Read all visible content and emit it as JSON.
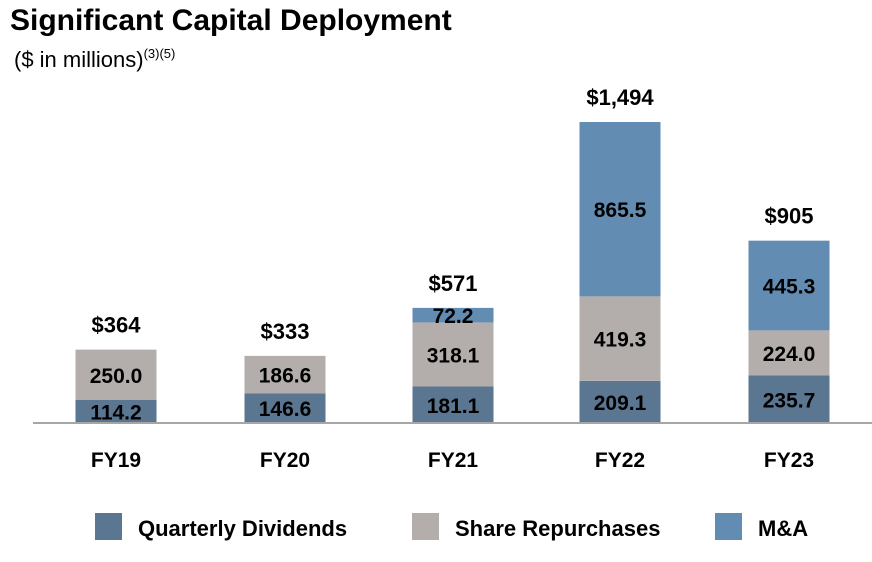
{
  "header": {
    "title": "Significant Capital Deployment",
    "subtitle": "($ in millions)",
    "footnotes": "(3)(5)"
  },
  "colors": {
    "dividends": "#5a7690",
    "repurchases": "#b3aeac",
    "ma": "#628cb1",
    "axis": "#a6a6a6"
  },
  "chart_data": {
    "type": "bar",
    "stacked": true,
    "title": "Significant Capital Deployment",
    "ylabel": "($ in millions)",
    "categories": [
      "FY19",
      "FY20",
      "FY21",
      "FY22",
      "FY23"
    ],
    "series": [
      {
        "name": "Quarterly Dividends",
        "values": [
          114.2,
          146.6,
          181.1,
          209.1,
          235.7
        ],
        "labels": [
          "114.2",
          "146.6",
          "181.1",
          "209.1",
          "235.7"
        ]
      },
      {
        "name": "Share Repurchases",
        "values": [
          250.0,
          186.6,
          318.1,
          419.3,
          224.0
        ],
        "labels": [
          "250.0",
          "186.6",
          "318.1",
          "419.3",
          "224.0"
        ]
      },
      {
        "name": "M&A",
        "values": [
          0,
          0,
          72.2,
          865.5,
          445.3
        ],
        "labels": [
          "",
          "",
          "72.2",
          "865.5",
          "445.3"
        ]
      }
    ],
    "totals": [
      "$364",
      "$333",
      "$571",
      "$1,494",
      "$905"
    ],
    "ylim": [
      0,
      1494
    ],
    "legend_position": "bottom",
    "grid": false
  }
}
